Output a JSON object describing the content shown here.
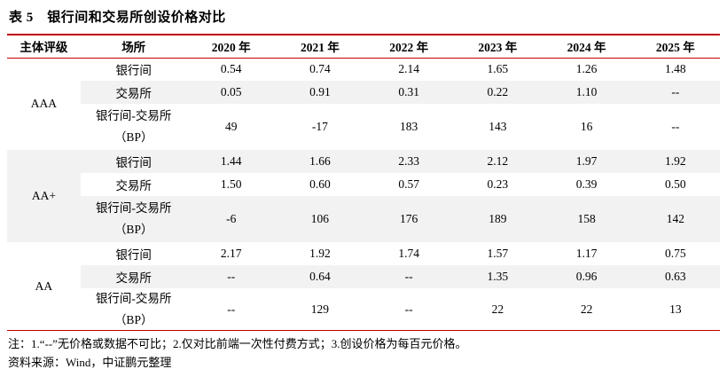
{
  "title": "表 5　银行间和交易所创设价格对比",
  "colors": {
    "accent": "#C00000",
    "row_shade": "#F2F2F2"
  },
  "table": {
    "headers": [
      "主体评级",
      "场所",
      "2020 年",
      "2021 年",
      "2022 年",
      "2023 年",
      "2024 年",
      "2025 年"
    ],
    "groups": [
      {
        "rating": "AAA",
        "rows": [
          {
            "venue": "银行间",
            "values": [
              "0.54",
              "0.74",
              "2.14",
              "1.65",
              "1.26",
              "1.48"
            ]
          },
          {
            "venue": "交易所",
            "values": [
              "0.05",
              "0.91",
              "0.31",
              "0.22",
              "1.10",
              "--"
            ]
          },
          {
            "venue": "银行间-交易所",
            "venue_line2": "（BP）",
            "values": [
              "49",
              "-17",
              "183",
              "143",
              "16",
              "--"
            ]
          }
        ]
      },
      {
        "rating": "AA+",
        "rows": [
          {
            "venue": "银行间",
            "values": [
              "1.44",
              "1.66",
              "2.33",
              "2.12",
              "1.97",
              "1.92"
            ]
          },
          {
            "venue": "交易所",
            "values": [
              "1.50",
              "0.60",
              "0.57",
              "0.23",
              "0.39",
              "0.50"
            ]
          },
          {
            "venue": "银行间-交易所",
            "venue_line2": "（BP）",
            "values": [
              "-6",
              "106",
              "176",
              "189",
              "158",
              "142"
            ]
          }
        ]
      },
      {
        "rating": "AA",
        "rows": [
          {
            "venue": "银行间",
            "values": [
              "2.17",
              "1.92",
              "1.74",
              "1.57",
              "1.17",
              "0.75"
            ]
          },
          {
            "venue": "交易所",
            "values": [
              "--",
              "0.64",
              "--",
              "1.35",
              "0.96",
              "0.63"
            ]
          },
          {
            "venue": "银行间-交易所",
            "venue_line2": "（BP）",
            "values": [
              "--",
              "129",
              "--",
              "22",
              "22",
              "13"
            ]
          }
        ]
      }
    ]
  },
  "notes": "注：1.“--”无价格或数据不可比；2.仅对比前端一次性付费方式；3.创设价格为每百元价格。",
  "source": "资料来源：Wind，中证鹏元整理"
}
